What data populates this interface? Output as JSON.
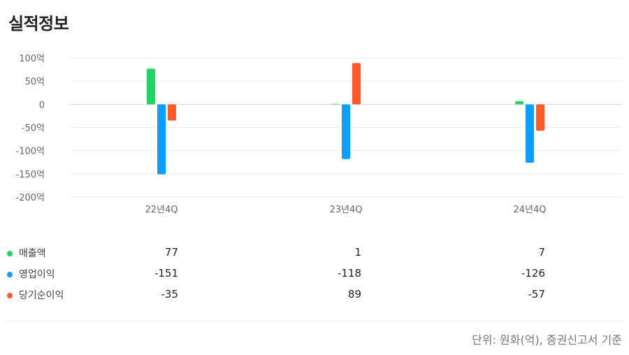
{
  "title": "실적정보",
  "chart_data": {
    "type": "bar",
    "categories": [
      "22년4Q",
      "23년4Q",
      "24년4Q"
    ],
    "y_ticks": [
      "100억",
      "50억",
      "0",
      "-50억",
      "-100억",
      "-150억",
      "-200억"
    ],
    "y_tick_values": [
      100,
      50,
      0,
      -50,
      -100,
      -150,
      -200
    ],
    "ylim": [
      -200,
      100
    ],
    "series": [
      {
        "name": "매출액",
        "color": "#1ed760",
        "values": [
          77,
          1,
          7
        ]
      },
      {
        "name": "영업이익",
        "color": "#0aa0ff",
        "values": [
          -151,
          -118,
          -126
        ]
      },
      {
        "name": "당기순이익",
        "color": "#ff5a2a",
        "values": [
          -35,
          89,
          -57
        ]
      }
    ]
  },
  "table": {
    "rows": [
      {
        "name": "매출액",
        "values": [
          "77",
          "1",
          "7"
        ]
      },
      {
        "name": "영업이익",
        "values": [
          "-151",
          "-118",
          "-126"
        ]
      },
      {
        "name": "당기순이익",
        "values": [
          "-35",
          "89",
          "-57"
        ]
      }
    ]
  },
  "footnote": "단위: 원화(억), 증권신고서 기준"
}
